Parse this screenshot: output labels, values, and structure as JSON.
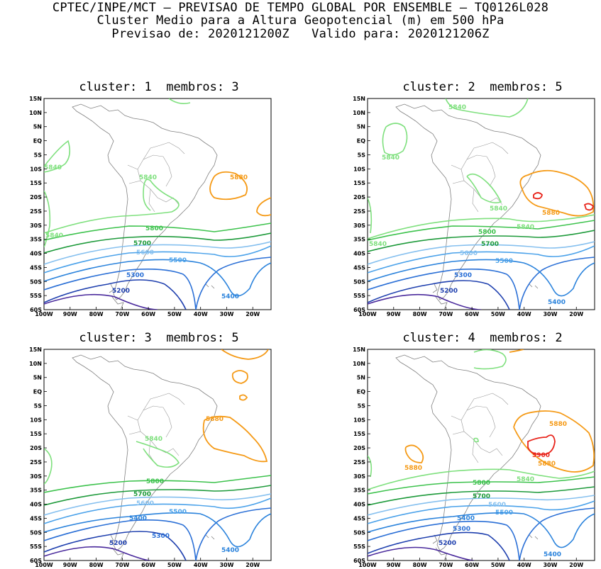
{
  "header": {
    "line1": "CPTEC/INPE/MCT – PREVISAO DE TEMPO GLOBAL POR ENSEMBLE – TQ0126L028",
    "line2": "Cluster Medio para a Altura Geopotencial (m) em 500 hPa",
    "line3": "Previsao de: 2020121200Z   Valido para: 2020121206Z"
  },
  "axes": {
    "lat_labels": [
      "15N",
      "10N",
      "5N",
      "EQ",
      "5S",
      "10S",
      "15S",
      "20S",
      "25S",
      "30S",
      "35S",
      "40S",
      "45S",
      "50S",
      "55S",
      "60S"
    ],
    "lon_labels": [
      "100W",
      "90W",
      "80W",
      "70W",
      "60W",
      "50W",
      "40W",
      "30W",
      "20W"
    ]
  },
  "colors": {
    "c5200": "#1e3fae",
    "c5300": "#2a6fd6",
    "c5400": "#2b83dc",
    "c5500": "#4ba2ea",
    "c5600": "#86c0ef",
    "c5700": "#1d9a3a",
    "c5800": "#3cc24c",
    "c5840": "#7fe07e",
    "c5880": "#f59a16",
    "c5900": "#e8231a",
    "c5100": "#4a2a9c",
    "coast": "#808080"
  },
  "panels": [
    {
      "title": "cluster: 1  membros: 3",
      "labels": {
        "l5840a": "5840",
        "l5840b": "5840",
        "l5840c": "5840",
        "l5880a": "5880",
        "l5800": "5800",
        "l5700": "5700",
        "l5600": "5600",
        "l5500": "5500",
        "l5300": "5300",
        "l5200": "5200",
        "l5400": "5400"
      }
    },
    {
      "title": "cluster: 2  membros: 5",
      "labels": {
        "l5840a": "5840",
        "l5840b": "5840",
        "l5840c": "5840",
        "l5840d": "5840",
        "l5840e": "5840",
        "l5880a": "5880",
        "l5800": "5800",
        "l5700": "5700",
        "l5600": "5600",
        "l5500": "5500",
        "l5300": "5300",
        "l5200": "5200",
        "l5400": "5400"
      }
    },
    {
      "title": "cluster: 3  membros: 5",
      "labels": {
        "l5840a": "5840",
        "l5880a": "5880",
        "l5800": "5800",
        "l5700": "5700",
        "l5600": "5600",
        "l5500": "5500",
        "l5400a": "5400",
        "l5300": "5300",
        "l5200": "5200",
        "l5400": "5400"
      }
    },
    {
      "title": "cluster: 4  membros: 2",
      "labels": {
        "l5880a": "5880",
        "l5880b": "5880",
        "l5880c": "5880",
        "l5900": "5900",
        "l5800": "5800",
        "l5840a": "5840",
        "l5700": "5700",
        "l5600": "5600",
        "l5500": "5500",
        "l5400a": "5400",
        "l5300": "5300",
        "l5200": "5200",
        "l5400": "5400"
      }
    }
  ]
}
